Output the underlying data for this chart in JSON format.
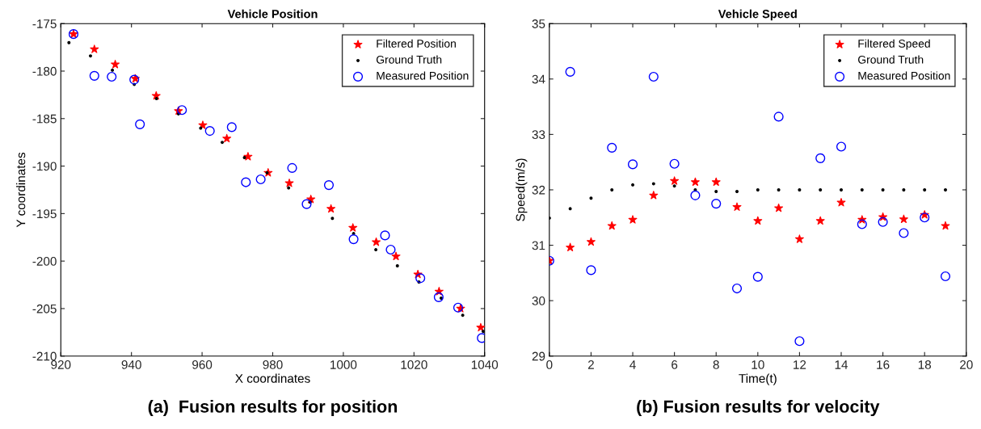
{
  "chart_data": [
    {
      "type": "scatter",
      "title": "Vehicle Position",
      "xlabel": "X coordinates",
      "ylabel": "Y coordinates",
      "annotations": [
        "(a)  Fusion results for position"
      ],
      "xlim": [
        920,
        1040
      ],
      "xticks": [
        920,
        940,
        960,
        980,
        1000,
        1020,
        1040
      ],
      "ylim": [
        -210,
        -175
      ],
      "yticks": [
        -210,
        -205,
        -200,
        -195,
        -190,
        -185,
        -180,
        -175
      ],
      "grid": false,
      "legend": "top right",
      "series": [
        {
          "name": "Filtered Position",
          "color": "#ff0000",
          "marker": "star",
          "x": [
            923.6,
            929.5,
            935.4,
            941.1,
            947.0,
            953.3,
            960.2,
            967.0,
            973.0,
            978.7,
            984.7,
            990.8,
            996.5,
            1002.7,
            1009.3,
            1014.9,
            1021.1,
            1027.1,
            1033.2,
            1038.9
          ],
          "values": [
            -176.1,
            -177.7,
            -179.3,
            -180.8,
            -182.6,
            -184.2,
            -185.7,
            -187.1,
            -189.0,
            -190.7,
            -191.8,
            -193.5,
            -194.5,
            -196.5,
            -198.0,
            -199.5,
            -201.4,
            -203.2,
            -205.0,
            -207.0
          ]
        },
        {
          "name": "Ground Truth",
          "color": "#000000",
          "marker": "point",
          "x": [
            922.3,
            928.4,
            934.6,
            940.8,
            947.1,
            953.3,
            959.6,
            965.7,
            972.0,
            978.4,
            984.5,
            990.6,
            996.9,
            1002.9,
            1009.2,
            1015.3,
            1021.4,
            1027.7,
            1033.8,
            1039.6
          ],
          "values": [
            -177.0,
            -178.4,
            -179.9,
            -181.4,
            -182.9,
            -184.5,
            -186.0,
            -187.5,
            -189.1,
            -190.7,
            -192.3,
            -193.8,
            -195.5,
            -197.1,
            -198.8,
            -200.5,
            -202.2,
            -203.9,
            -205.7,
            -207.4
          ]
        },
        {
          "name": "Measured Position",
          "color": "#0000ff",
          "marker": "circle",
          "x": [
            923.6,
            929.5,
            934.4,
            940.8,
            942.4,
            954.3,
            962.2,
            968.4,
            972.4,
            976.6,
            985.5,
            989.6,
            995.9,
            1002.9,
            1011.8,
            1013.4,
            1021.8,
            1027.0,
            1032.5,
            1039.2
          ],
          "values": [
            -176.1,
            -180.5,
            -180.6,
            -180.9,
            -185.6,
            -184.1,
            -186.3,
            -185.9,
            -191.7,
            -191.4,
            -190.2,
            -194.0,
            -192.0,
            -197.7,
            -197.3,
            -198.8,
            -201.8,
            -203.8,
            -204.9,
            -208.1
          ]
        }
      ]
    },
    {
      "type": "scatter",
      "title": "Vehicle Speed",
      "xlabel": "Time(t)",
      "ylabel": "Speed(m/s)",
      "annotations": [
        "(b) Fusion results for velocity"
      ],
      "xlim": [
        0,
        20
      ],
      "xticks": [
        0,
        2,
        4,
        6,
        8,
        10,
        12,
        14,
        16,
        18,
        20
      ],
      "ylim": [
        29,
        35
      ],
      "yticks": [
        29,
        30,
        31,
        32,
        33,
        34,
        35
      ],
      "grid": false,
      "legend": "top right",
      "x": [
        0,
        1,
        2,
        3,
        4,
        5,
        6,
        7,
        8,
        9,
        10,
        11,
        12,
        13,
        14,
        15,
        16,
        17,
        18,
        19
      ],
      "series": [
        {
          "name": "Filtered Speed",
          "color": "#ff0000",
          "marker": "star",
          "values": [
            30.72,
            30.96,
            31.06,
            31.35,
            31.46,
            31.9,
            32.16,
            32.14,
            32.14,
            31.69,
            31.44,
            31.67,
            31.11,
            31.44,
            31.77,
            31.46,
            31.51,
            31.47,
            31.55,
            31.35
          ]
        },
        {
          "name": "Ground Truth",
          "color": "#000000",
          "marker": "point",
          "values": [
            31.49,
            31.66,
            31.85,
            32.0,
            32.09,
            32.11,
            32.07,
            32.0,
            31.97,
            31.97,
            32.0,
            32.0,
            32.0,
            32.0,
            32.0,
            32.0,
            32.0,
            32.0,
            32.0,
            32.0
          ]
        },
        {
          "name": "Measured Position",
          "color": "#0000ff",
          "marker": "circle",
          "values": [
            30.72,
            34.13,
            30.55,
            32.76,
            32.46,
            34.04,
            32.47,
            31.9,
            31.75,
            30.22,
            30.43,
            33.32,
            29.27,
            32.57,
            32.78,
            31.38,
            31.42,
            31.22,
            31.5,
            30.44
          ]
        }
      ]
    }
  ]
}
